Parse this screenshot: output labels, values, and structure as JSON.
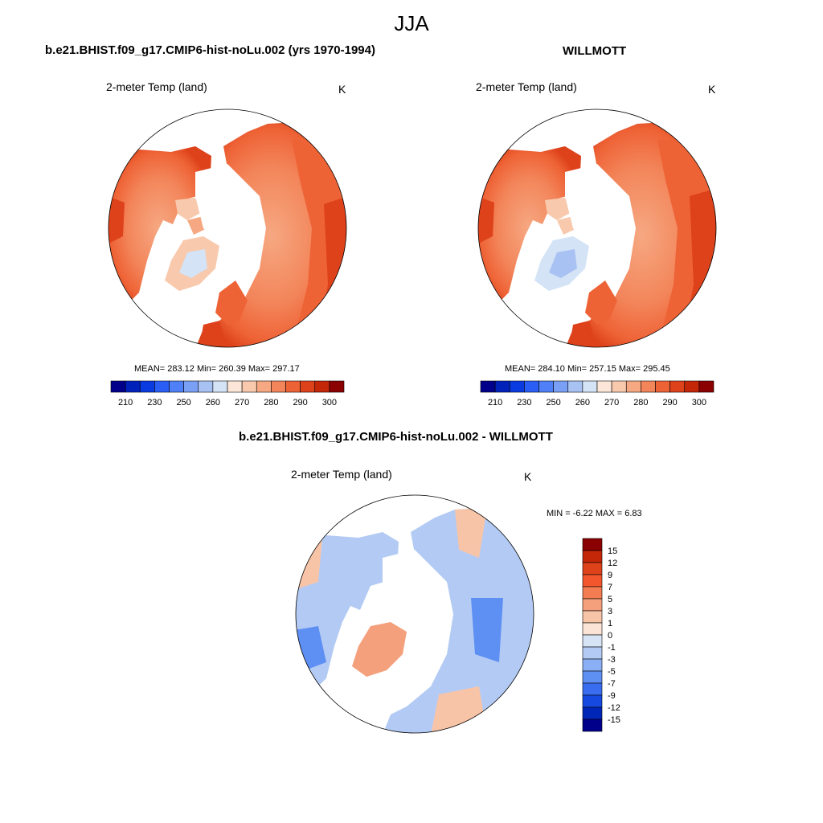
{
  "figure": {
    "title": "JJA"
  },
  "panels": [
    {
      "title": "b.e21.BHIST.f09_g17.CMIP6-hist-noLu.002 (yrs 1970-1994)",
      "variable": "2-meter Temp (land)",
      "units": "K",
      "stats": "MEAN= 283.12  Min= 260.39  Max= 297.17"
    },
    {
      "title": "WILLMOTT",
      "variable": "2-meter Temp (land)",
      "units": "K",
      "stats": "MEAN= 284.10  Min= 257.15  Max= 295.45"
    },
    {
      "title": "b.e21.BHIST.f09_g17.CMIP6-hist-noLu.002 - WILLMOTT",
      "variable": "2-meter Temp (land)",
      "units": "K",
      "stats": "MIN =  -6.22 MAX =   6.83"
    }
  ],
  "colorbar_abs": {
    "labels": [
      "210",
      "230",
      "250",
      "260",
      "270",
      "280",
      "290",
      "300"
    ],
    "colors": [
      "#00008b",
      "#0022bb",
      "#0a3be0",
      "#2a5ef5",
      "#4f80f7",
      "#7aa0f5",
      "#a8c2f3",
      "#d4e3f6",
      "#fbe6d8",
      "#f8c9ad",
      "#f6a882",
      "#f3855a",
      "#ee6336",
      "#de421b",
      "#c42608",
      "#8b0000"
    ]
  },
  "colorbar_diff": {
    "labels": [
      "15",
      "12",
      "9",
      "7",
      "5",
      "3",
      "1",
      "0",
      "-1",
      "-3",
      "-5",
      "-7",
      "-9",
      "-12",
      "-15"
    ],
    "colors": [
      "#8b0000",
      "#c42608",
      "#de421b",
      "#f3552c",
      "#f37c52",
      "#f5a07c",
      "#f8c4a8",
      "#fbe4d6",
      "#d6e4f6",
      "#b3cbf4",
      "#8aaff4",
      "#5e8ff3",
      "#3a6cf0",
      "#1549e0",
      "#0026b8",
      "#00008b"
    ]
  }
}
